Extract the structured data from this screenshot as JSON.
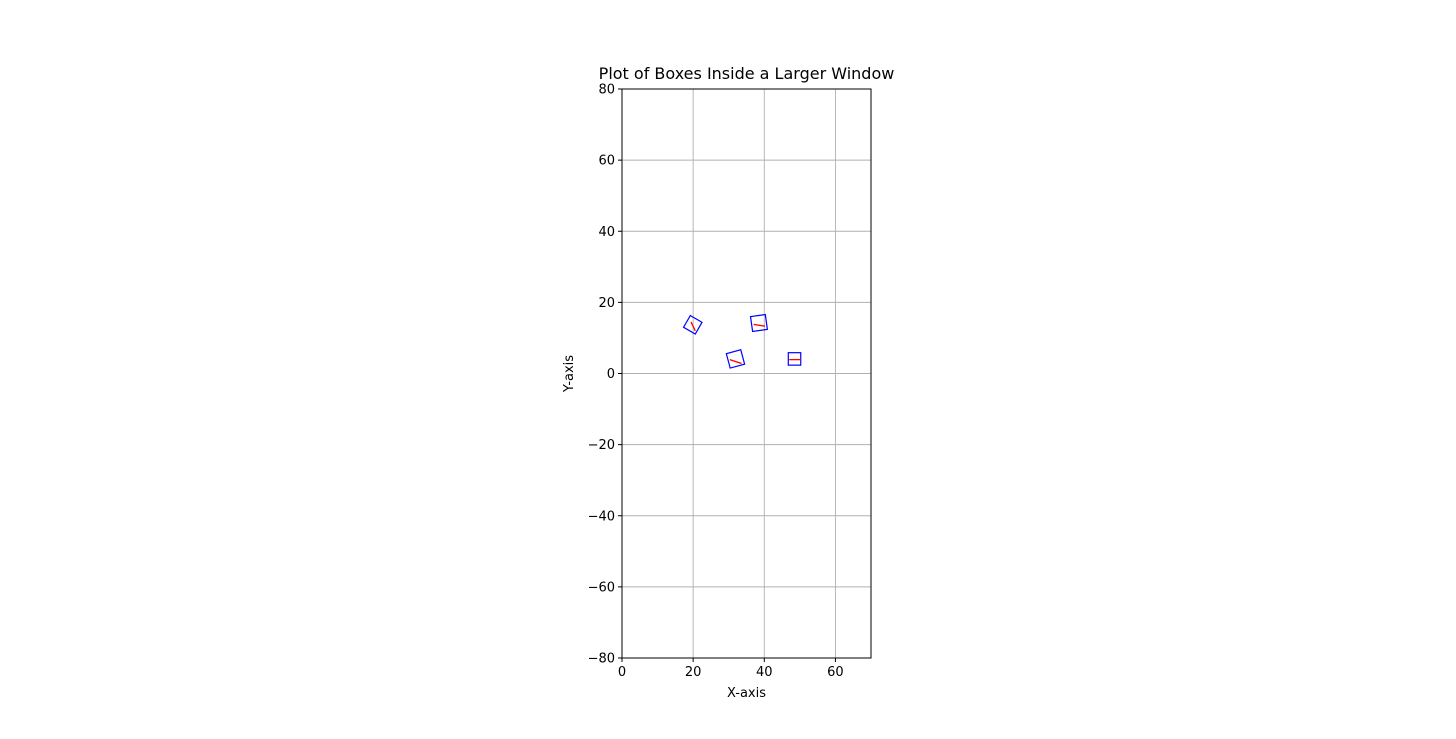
{
  "chart_data": {
    "type": "scatter",
    "title": "Plot of Boxes Inside a Larger Window",
    "xlabel": "X-axis",
    "ylabel": "Y-axis",
    "xlim": [
      0,
      70
    ],
    "ylim": [
      -80,
      80
    ],
    "xticks": [
      0,
      20,
      40,
      60
    ],
    "yticks": [
      -80,
      -60,
      -40,
      -20,
      0,
      20,
      40,
      60,
      80
    ],
    "xtick_labels": [
      "0",
      "20",
      "40",
      "60"
    ],
    "ytick_labels": [
      "−80",
      "−60",
      "−40",
      "−20",
      "0",
      "20",
      "40",
      "60",
      "80"
    ],
    "grid": true,
    "box_color": "#0000ff",
    "heading_color": "#ff0000",
    "boxes": [
      {
        "center": [
          19.9,
          13.7
        ],
        "width": 3.8,
        "height": 3.8,
        "angle_deg": -30,
        "heading": [
          [
            19.4,
            14.5
          ],
          [
            20.6,
            12.0
          ]
        ]
      },
      {
        "center": [
          38.5,
          14.2
        ],
        "width": 4.2,
        "height": 4.2,
        "angle_deg": 8,
        "heading": [
          [
            37.0,
            13.8
          ],
          [
            40.2,
            13.3
          ]
        ]
      },
      {
        "center": [
          31.9,
          4.1
        ],
        "width": 4.2,
        "height": 4.2,
        "angle_deg": 15,
        "heading": [
          [
            30.3,
            3.9
          ],
          [
            33.6,
            2.8
          ]
        ]
      },
      {
        "center": [
          48.5,
          4.1
        ],
        "width": 3.5,
        "height": 3.5,
        "angle_deg": 0,
        "heading": [
          [
            47.0,
            3.9
          ],
          [
            50.3,
            3.9
          ]
        ]
      }
    ]
  }
}
